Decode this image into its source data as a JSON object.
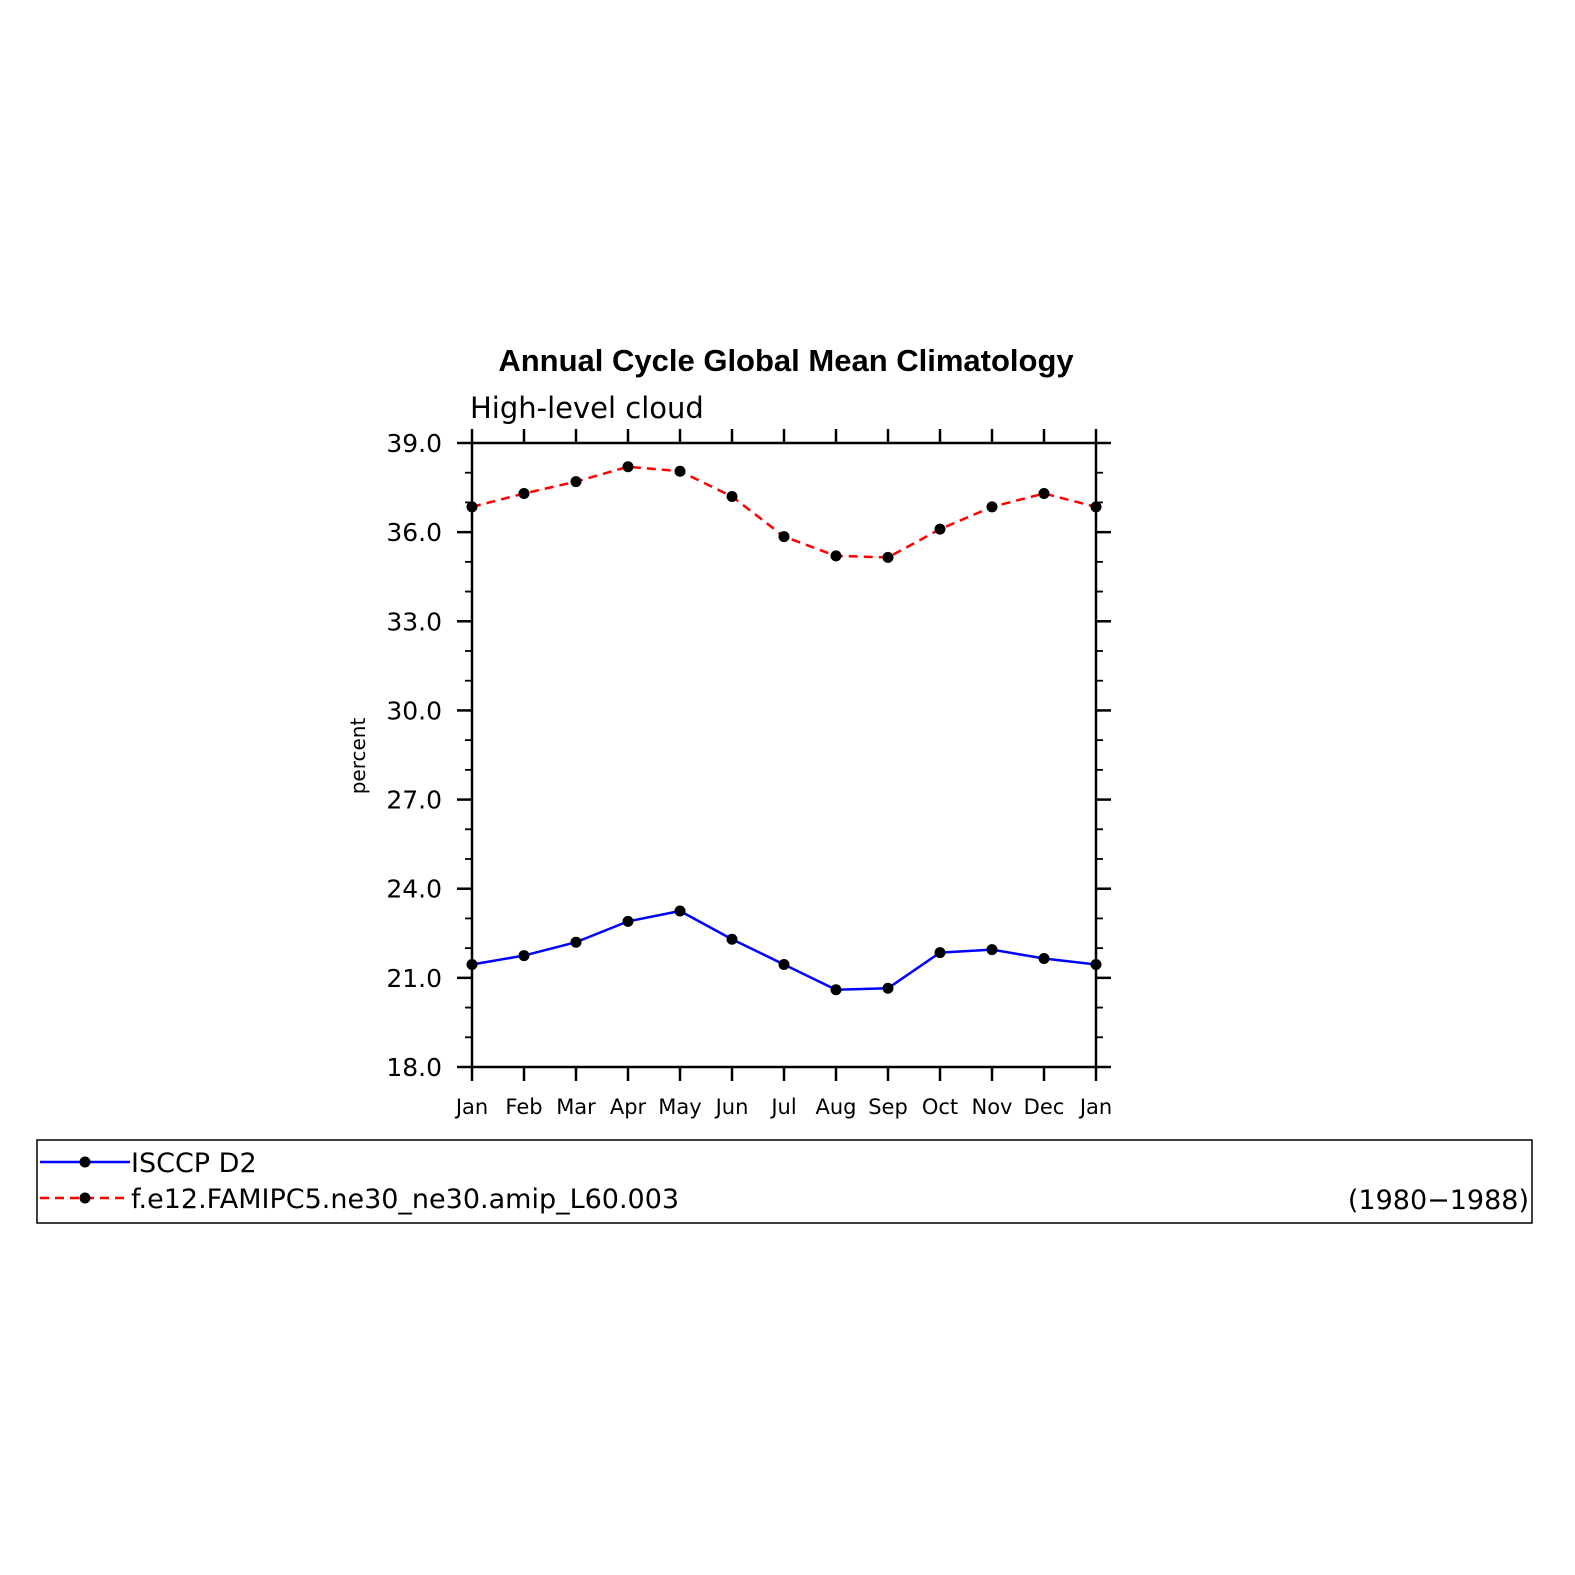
{
  "chart_data": {
    "type": "line",
    "title": "Annual Cycle Global Mean Climatology",
    "subtitle": "High-level cloud",
    "xlabel": "",
    "ylabel": "percent",
    "categories": [
      "Jan",
      "Feb",
      "Mar",
      "Apr",
      "May",
      "Jun",
      "Jul",
      "Aug",
      "Sep",
      "Oct",
      "Nov",
      "Dec",
      "Jan"
    ],
    "ylim": [
      18.0,
      39.0
    ],
    "yticks": [
      "18.0",
      "21.0",
      "24.0",
      "27.0",
      "30.0",
      "33.0",
      "36.0",
      "39.0"
    ],
    "grid": false,
    "series": [
      {
        "name": "ISCCP D2",
        "color": "#0000ff",
        "dash": "solid",
        "marker": "filled-circle",
        "values": [
          21.45,
          21.75,
          22.2,
          22.9,
          23.25,
          22.3,
          21.45,
          20.6,
          20.65,
          21.85,
          21.95,
          21.65,
          21.45
        ]
      },
      {
        "name": "f.e12.FAMIPC5.ne30_ne30.amip_L60.003",
        "color": "#ff0000",
        "dash": "dashed",
        "marker": "filled-circle",
        "values": [
          36.85,
          37.3,
          37.7,
          38.2,
          38.05,
          37.2,
          35.85,
          35.2,
          35.15,
          36.1,
          36.85,
          37.3,
          36.85
        ]
      }
    ],
    "legend": {
      "placement": "bottom",
      "period": "(1980−1988)"
    }
  }
}
